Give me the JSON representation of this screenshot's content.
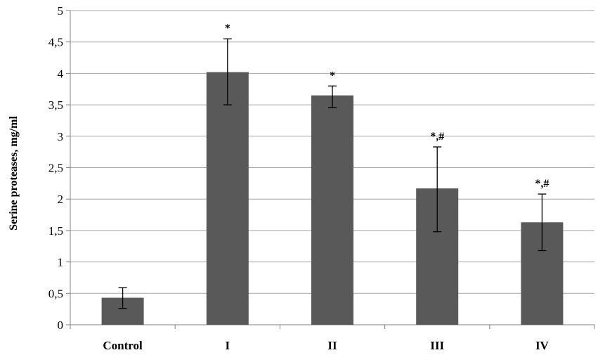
{
  "chart_data": {
    "type": "bar",
    "title": "",
    "xlabel": "",
    "ylabel": "Serine proteases, mg/ml",
    "ylim": [
      0,
      5
    ],
    "y_ticks": [
      0,
      0.5,
      1,
      1.5,
      2,
      2.5,
      3,
      3.5,
      4,
      4.5,
      5
    ],
    "y_tick_labels": [
      "0",
      "0,5",
      "1",
      "1,5",
      "2",
      "2,5",
      "3",
      "3,5",
      "4",
      "4,5",
      "5"
    ],
    "grid": true,
    "legend": "none",
    "categories": [
      "Control",
      "I",
      "II",
      "III",
      "IV"
    ],
    "values": [
      0.43,
      4.02,
      3.65,
      2.17,
      1.63
    ],
    "error_upper": [
      0.59,
      4.55,
      3.8,
      2.83,
      2.08
    ],
    "error_lower": [
      0.26,
      3.5,
      3.46,
      1.48,
      1.18
    ],
    "annotations": [
      "",
      "*",
      "*",
      "*,#",
      "*,#"
    ],
    "colors": {
      "bar": "#595959",
      "grid": "#a6a6a6",
      "axis": "#808080",
      "text": "#000000"
    }
  }
}
